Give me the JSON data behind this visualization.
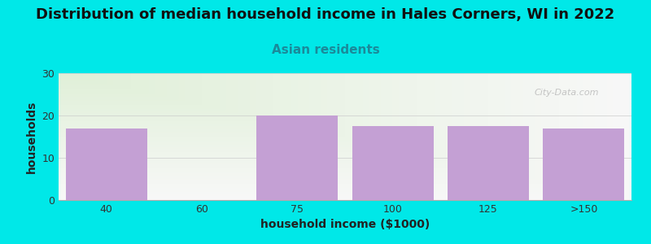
{
  "title": "Distribution of median household income in Hales Corners, WI in 2022",
  "subtitle": "Asian residents",
  "xlabel": "household income ($1000)",
  "ylabel": "households",
  "categories": [
    "40",
    "60",
    "75",
    "100",
    "125",
    ">150"
  ],
  "values": [
    17,
    0,
    20,
    17.5,
    17.5,
    17
  ],
  "bar_colors": [
    "#c4a0d4",
    "#d8edc8",
    "#c4a0d4",
    "#c4a0d4",
    "#c4a0d4",
    "#c4a0d4"
  ],
  "background_color": "#00e8e8",
  "plot_bg_color_topleft": "#e0f0d8",
  "plot_bg_color_white": "#f8f8f8",
  "ylim": [
    0,
    30
  ],
  "yticks": [
    0,
    10,
    20,
    30
  ],
  "title_fontsize": 13,
  "subtitle_fontsize": 11,
  "axis_label_fontsize": 10,
  "tick_fontsize": 9,
  "subtitle_color": "#1a8a9a",
  "title_color": "#111111",
  "watermark": "City-Data.com"
}
